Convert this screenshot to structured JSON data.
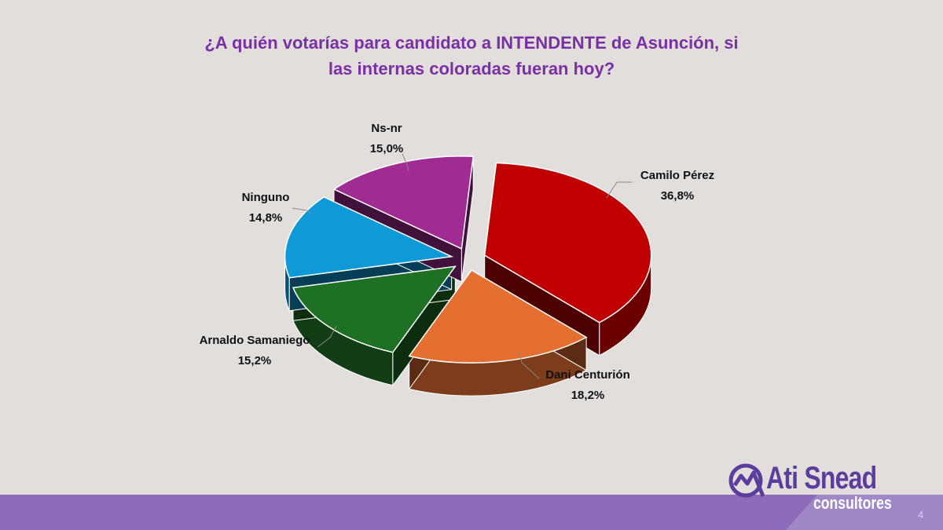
{
  "title_line1": "¿A quién votarías para candidato a INTENDENTE de Asunción, si",
  "title_line2": "las internas coloradas fueran hoy?",
  "chart_data": {
    "type": "pie",
    "title": "¿A quién votarías para candidato a INTENDENTE de Asunción, si las internas coloradas fueran hoy?",
    "style": "3d-exploded",
    "slices": [
      {
        "label": "Camilo Pérez",
        "value": 36.8,
        "display": "36,8%",
        "color": "#c00000"
      },
      {
        "label": "Dani Centurión",
        "value": 18.2,
        "display": "18,2%",
        "color": "#e46f30"
      },
      {
        "label": "Arnaldo Samaniego",
        "value": 15.2,
        "display": "15,2%",
        "color": "#1e7124"
      },
      {
        "label": "Ninguno",
        "value": 14.8,
        "display": "14,8%",
        "color": "#0d9ad6"
      },
      {
        "label": "Ns-nr",
        "value": 15.0,
        "display": "15,0%",
        "color": "#a02b93"
      }
    ]
  },
  "logo": {
    "name": "Ati Snead",
    "sub": "consultores"
  },
  "page_number": "4",
  "colors": {
    "title": "#7a2fa6",
    "band": "#8e6bb8",
    "band_dark": "#6d4a9c"
  }
}
